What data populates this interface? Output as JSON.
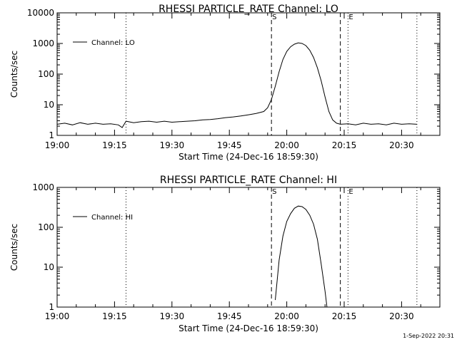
{
  "footer_text": "1-Sep-2022 20:31",
  "chart_data": [
    {
      "type": "line",
      "title": "RHESSI PARTICLE_RATE Channel: LO",
      "xlabel": "Start Time (24-Dec-16 18:59:30)",
      "ylabel": "Counts/sec",
      "yscale": "log",
      "xlim": [
        "19:00",
        "20:40"
      ],
      "ylim": [
        1,
        10000
      ],
      "xticks": [
        "19:00",
        "19:15",
        "19:30",
        "19:45",
        "20:00",
        "20:15",
        "20:30"
      ],
      "yticks": [
        "1",
        "10",
        "100",
        "1000",
        "10000"
      ],
      "markers": [
        {
          "label": "S",
          "time": "19:56",
          "style": "dashed"
        },
        {
          "label": "E",
          "time": "20:16",
          "style": "dotted"
        }
      ],
      "extra_lines": [
        {
          "time": "19:00",
          "style": "dotted"
        },
        {
          "time": "19:18",
          "style": "dotted"
        },
        {
          "time": "20:14",
          "style": "dashed"
        },
        {
          "time": "20:34",
          "style": "dotted"
        }
      ],
      "legend": {
        "label": "Channel: LO",
        "position": "top-left"
      },
      "series": [
        {
          "name": "Channel: LO",
          "points": [
            [
              "19:00",
              2.3
            ],
            [
              "19:02",
              2.5
            ],
            [
              "19:04",
              2.2
            ],
            [
              "19:06",
              2.6
            ],
            [
              "19:08",
              2.3
            ],
            [
              "19:10",
              2.5
            ],
            [
              "19:12",
              2.3
            ],
            [
              "19:14",
              2.4
            ],
            [
              "19:16",
              2.2
            ],
            [
              "19:17",
              1.8
            ],
            [
              "19:18",
              2.9
            ],
            [
              "19:20",
              2.6
            ],
            [
              "19:22",
              2.8
            ],
            [
              "19:24",
              2.9
            ],
            [
              "19:26",
              2.7
            ],
            [
              "19:28",
              2.9
            ],
            [
              "19:30",
              2.7
            ],
            [
              "19:32",
              2.8
            ],
            [
              "19:34",
              2.9
            ],
            [
              "19:36",
              3.0
            ],
            [
              "19:38",
              3.2
            ],
            [
              "19:40",
              3.3
            ],
            [
              "19:42",
              3.5
            ],
            [
              "19:44",
              3.8
            ],
            [
              "19:46",
              4.0
            ],
            [
              "19:48",
              4.3
            ],
            [
              "19:50",
              4.7
            ],
            [
              "19:52",
              5.2
            ],
            [
              "19:54",
              6.0
            ],
            [
              "19:55",
              8.0
            ],
            [
              "19:56",
              15
            ],
            [
              "19:57",
              40
            ],
            [
              "19:58",
              120
            ],
            [
              "19:59",
              300
            ],
            [
              "20:00",
              550
            ],
            [
              "20:01",
              780
            ],
            [
              "20:02",
              950
            ],
            [
              "20:03",
              1050
            ],
            [
              "20:04",
              1000
            ],
            [
              "20:05",
              850
            ],
            [
              "20:06",
              600
            ],
            [
              "20:07",
              350
            ],
            [
              "20:08",
              160
            ],
            [
              "20:09",
              60
            ],
            [
              "20:10",
              18
            ],
            [
              "20:11",
              6
            ],
            [
              "20:12",
              3.2
            ],
            [
              "20:13",
              2.5
            ],
            [
              "20:14",
              2.3
            ],
            [
              "20:16",
              2.4
            ],
            [
              "20:18",
              2.2
            ],
            [
              "20:20",
              2.5
            ],
            [
              "20:22",
              2.3
            ],
            [
              "20:24",
              2.4
            ],
            [
              "20:26",
              2.2
            ],
            [
              "20:28",
              2.5
            ],
            [
              "20:30",
              2.3
            ],
            [
              "20:32",
              2.4
            ],
            [
              "20:34",
              2.3
            ]
          ]
        }
      ]
    },
    {
      "type": "line",
      "title": "RHESSI PARTICLE_RATE Channel: HI",
      "xlabel": "Start Time (24-Dec-16 18:59:30)",
      "ylabel": "Counts/sec",
      "yscale": "log",
      "xlim": [
        "19:00",
        "20:40"
      ],
      "ylim": [
        1,
        1000
      ],
      "xticks": [
        "19:00",
        "19:15",
        "19:30",
        "19:45",
        "20:00",
        "20:15",
        "20:30"
      ],
      "yticks": [
        "1",
        "10",
        "100",
        "1000"
      ],
      "markers": [
        {
          "label": "S",
          "time": "19:56",
          "style": "dashed"
        },
        {
          "label": "E",
          "time": "20:16",
          "style": "dotted"
        }
      ],
      "extra_lines": [
        {
          "time": "19:00",
          "style": "dotted"
        },
        {
          "time": "19:18",
          "style": "dotted"
        },
        {
          "time": "20:14",
          "style": "dashed"
        },
        {
          "time": "20:34",
          "style": "dotted"
        }
      ],
      "legend": {
        "label": "Channel: HI",
        "position": "top-left"
      },
      "series": [
        {
          "name": "Channel: HI",
          "points": [
            [
              "19:57",
              1.5
            ],
            [
              "19:58",
              15
            ],
            [
              "19:59",
              60
            ],
            [
              "20:00",
              140
            ],
            [
              "20:01",
              220
            ],
            [
              "20:02",
              300
            ],
            [
              "20:03",
              340
            ],
            [
              "20:04",
              330
            ],
            [
              "20:05",
              280
            ],
            [
              "20:06",
              200
            ],
            [
              "20:07",
              120
            ],
            [
              "20:08",
              50
            ],
            [
              "20:09",
              12
            ],
            [
              "20:10",
              2.5
            ],
            [
              "20:10.5",
              1.0
            ]
          ]
        }
      ]
    }
  ]
}
